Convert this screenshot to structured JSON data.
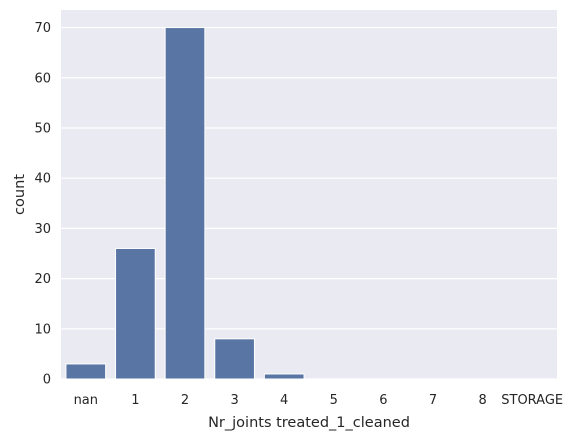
{
  "chart_data": {
    "type": "bar",
    "title": "",
    "xlabel": "Nr_joints treated_1_cleaned",
    "ylabel": "count",
    "categories": [
      "nan",
      "1",
      "2",
      "3",
      "4",
      "5",
      "6",
      "7",
      "8",
      "STORAGE"
    ],
    "values": [
      3,
      26,
      70,
      8,
      1,
      0,
      0,
      0,
      0,
      0
    ],
    "ylim": [
      0,
      73.5
    ],
    "yticks": [
      0,
      10,
      20,
      30,
      40,
      50,
      60,
      70
    ],
    "grid": true,
    "legend": "none",
    "bar_color": "#5875a4",
    "background_color": "#eaeaf2",
    "grid_color": "#ffffff"
  }
}
